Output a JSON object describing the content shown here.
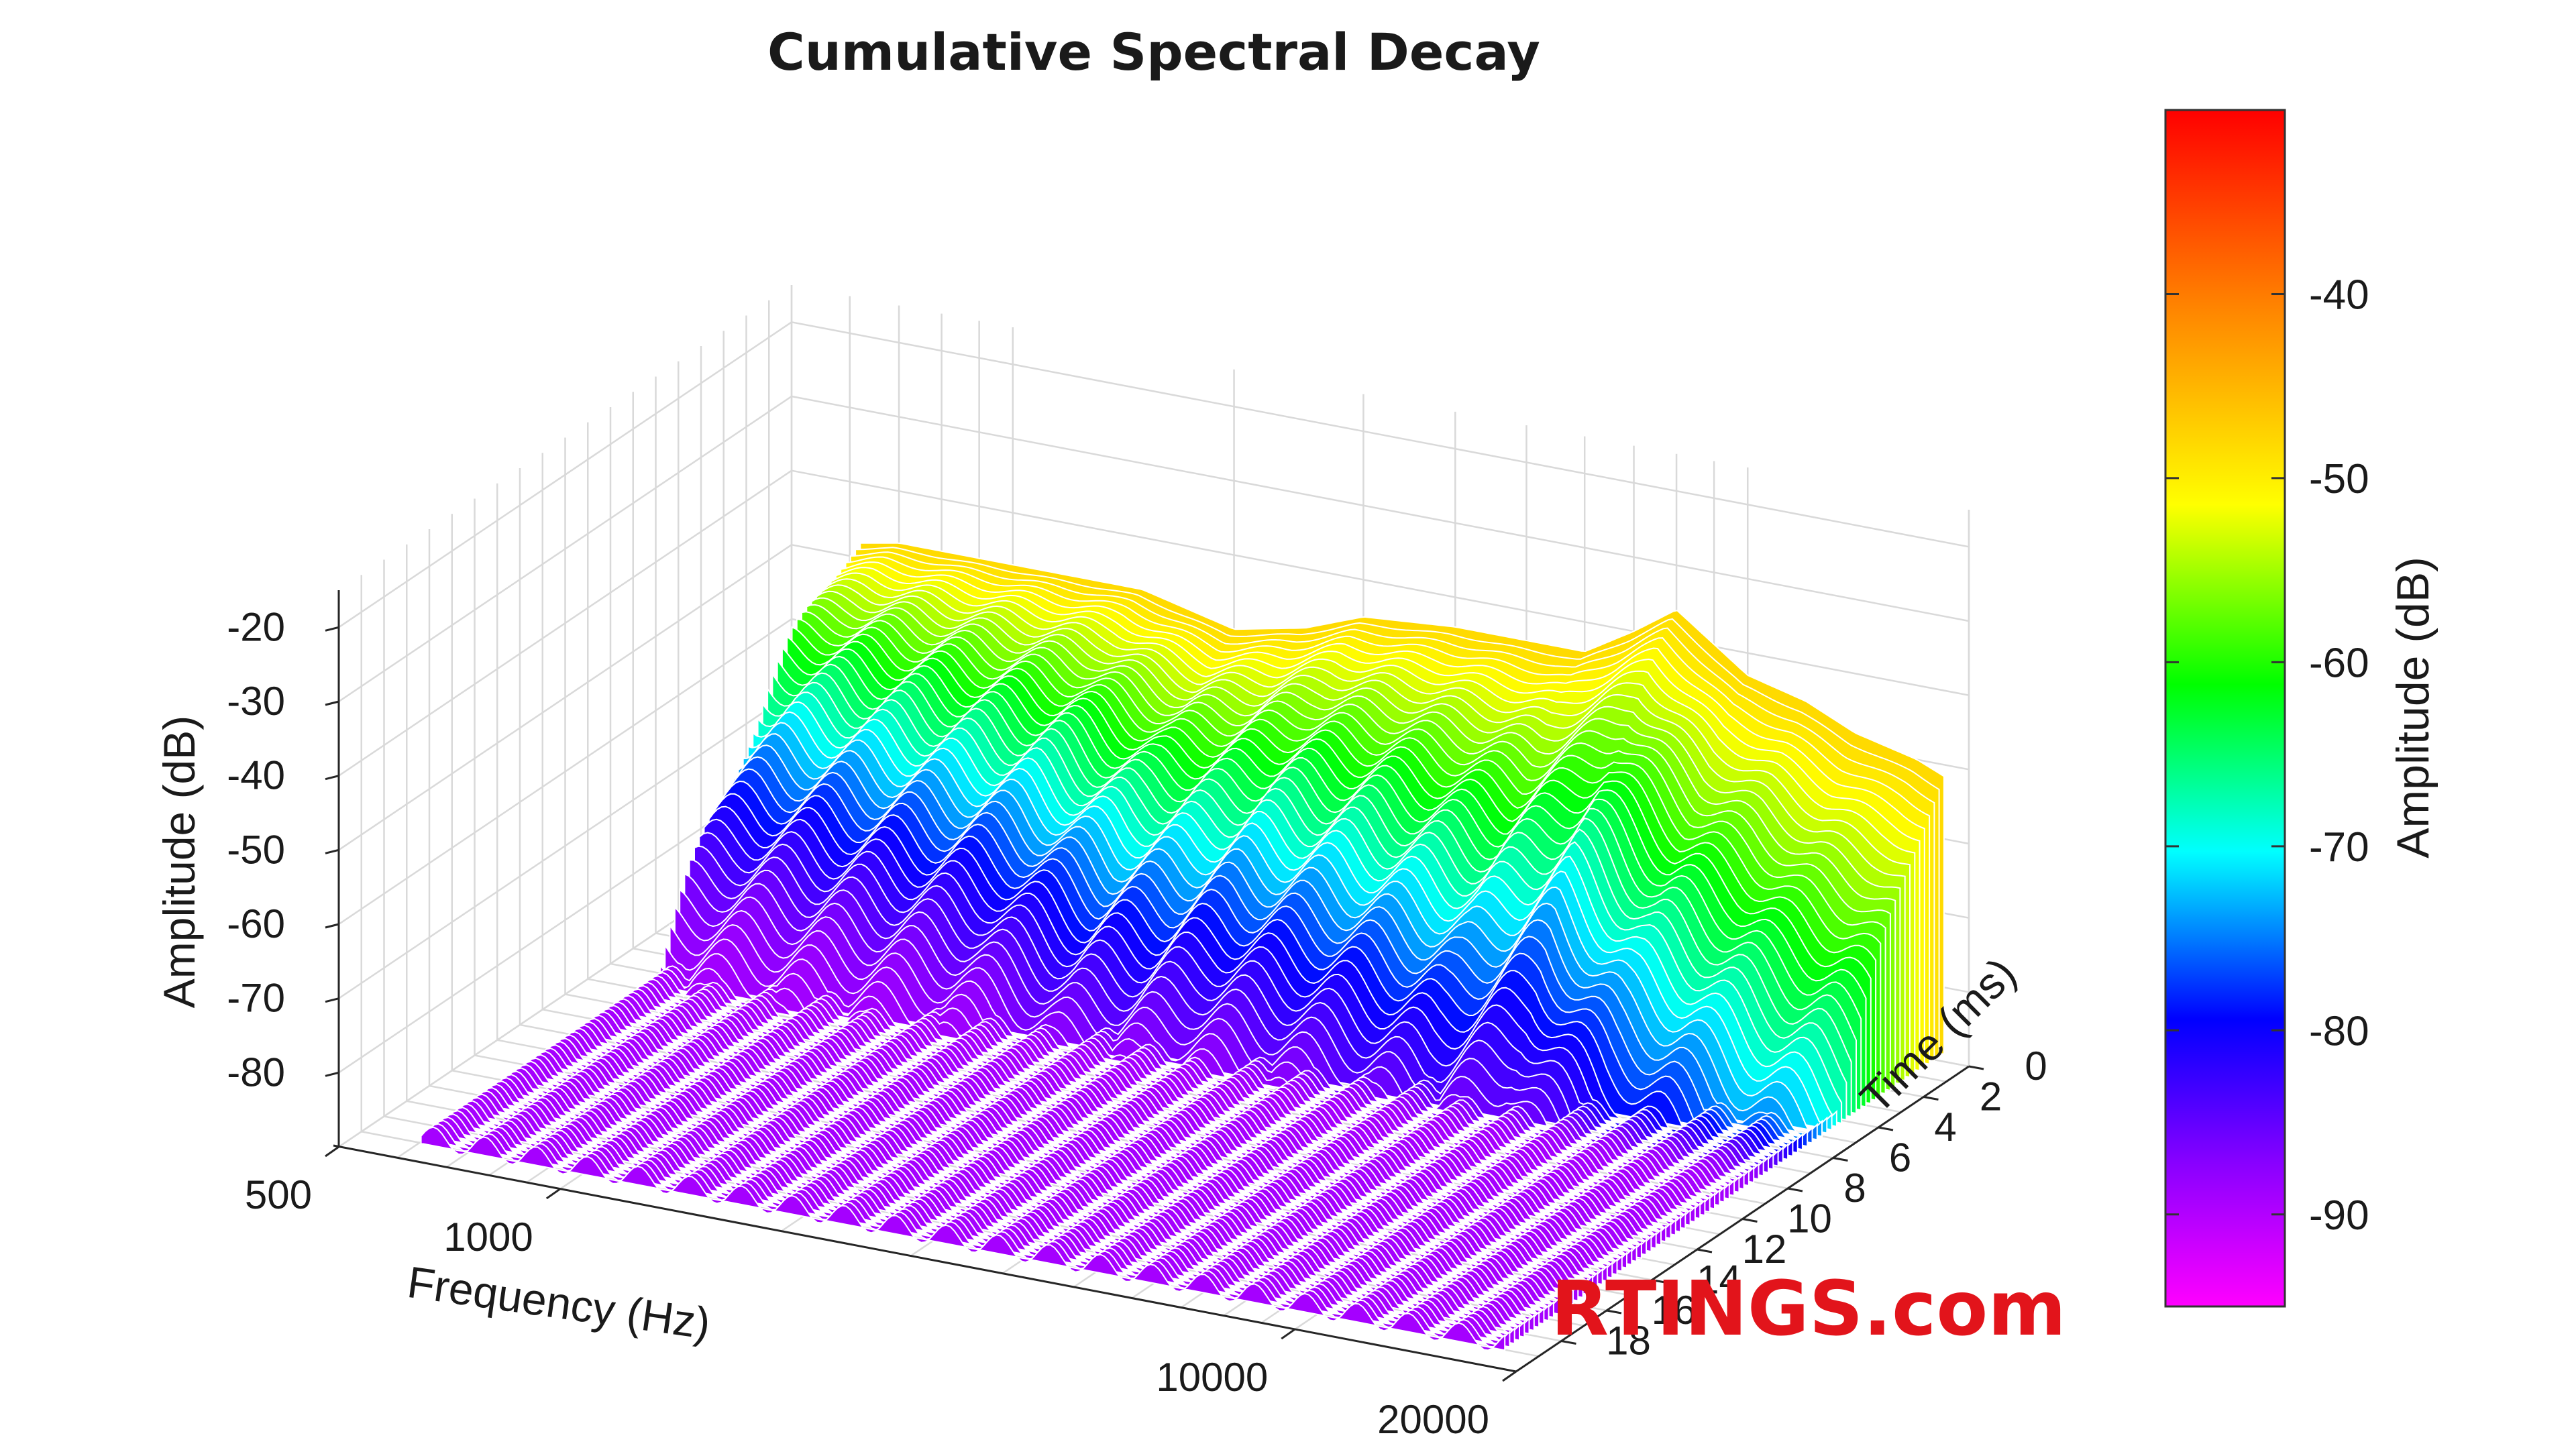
{
  "chart_data": {
    "type": "surface3d",
    "title": "Cumulative Spectral Decay",
    "x_axis": {
      "label": "Frequency (Hz)",
      "scale": "log",
      "range": [
        500,
        20000
      ],
      "ticks": [
        "500",
        "1000",
        "10000",
        "20000"
      ]
    },
    "y_axis": {
      "label": "Time (ms)",
      "range": [
        0,
        20
      ],
      "ticks": [
        "0",
        "2",
        "4",
        "6",
        "8",
        "10",
        "12",
        "14",
        "16",
        "18"
      ]
    },
    "z_axis": {
      "label": "Amplitude (dB)",
      "range": [
        -90,
        -15
      ],
      "ticks": [
        "-20",
        "-30",
        "-40",
        "-50",
        "-60",
        "-70",
        "-80"
      ]
    },
    "colorbar": {
      "label": "Amplitude (dB)",
      "range": [
        -95,
        -30
      ],
      "ticks": [
        "-40",
        "-50",
        "-60",
        "-70",
        "-80",
        "-90"
      ],
      "colormap": [
        "#ff00ff",
        "#8800ff",
        "#0000ff",
        "#00ffff",
        "#00ff00",
        "#ffff00",
        "#ff8800",
        "#ff0000"
      ]
    },
    "initial_response_db": {
      "frequency_hz": [
        550,
        700,
        1000,
        1500,
        2000,
        2500,
        3000,
        4000,
        5000,
        6000,
        7000,
        8000,
        10000,
        12000,
        14000,
        17000,
        20000
      ],
      "amplitude": [
        -49,
        -47,
        -47,
        -47,
        -50,
        -48,
        -45,
        -44,
        -44,
        -44,
        -40,
        -36,
        -43,
        -45,
        -48,
        -50,
        -53
      ]
    },
    "grid": true
  },
  "watermark": {
    "text": "RTINGS.com",
    "color": "#e2141b"
  }
}
